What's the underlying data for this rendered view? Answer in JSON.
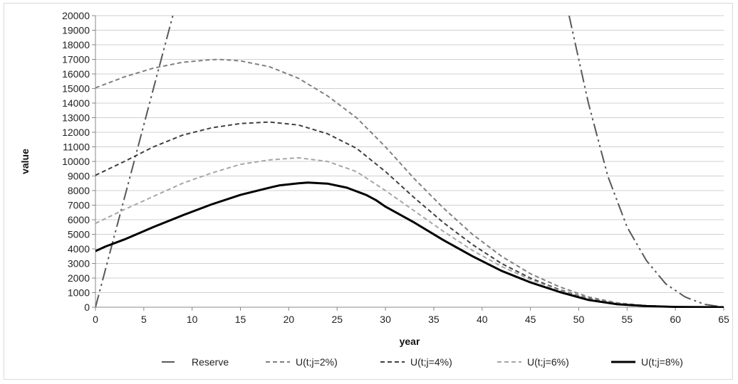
{
  "chart_data": {
    "type": "line",
    "title": "",
    "xlabel": "year",
    "ylabel": "value",
    "xlim": [
      0,
      65
    ],
    "ylim": [
      0,
      20000
    ],
    "x_ticks": [
      "0",
      "5",
      "10",
      "15",
      "20",
      "25",
      "30",
      "35",
      "40",
      "45",
      "50",
      "55",
      "60",
      "65"
    ],
    "y_ticks": [
      "0",
      "1000",
      "2000",
      "3000",
      "4000",
      "5000",
      "6000",
      "7000",
      "8000",
      "9000",
      "10000",
      "11000",
      "12000",
      "13000",
      "14000",
      "15000",
      "16000",
      "17000",
      "18000",
      "19000",
      "20000"
    ],
    "grid": "horizontal",
    "legend_position": "bottom",
    "series": [
      {
        "name": "Reserve",
        "color": "#595959",
        "dash": "long-dash-dot-dot",
        "x": [
          0,
          2,
          4,
          6,
          8,
          49,
          51,
          53,
          55,
          57,
          59,
          61,
          63,
          65
        ],
        "y": [
          0,
          5000,
          10000,
          15000,
          20000,
          20000,
          14000,
          9000,
          5500,
          3200,
          1600,
          700,
          200,
          0
        ]
      },
      {
        "name": "U(t;j=2%)",
        "color": "#808080",
        "dash": "dash",
        "x": [
          0,
          3,
          6,
          9,
          12,
          13,
          15,
          18,
          21,
          24,
          27,
          30,
          33,
          36,
          39,
          42,
          45,
          48,
          51,
          54,
          57,
          60,
          63,
          65
        ],
        "y": [
          15050,
          15800,
          16400,
          16800,
          16980,
          16990,
          16900,
          16500,
          15700,
          14500,
          13000,
          11000,
          8800,
          6800,
          5000,
          3500,
          2300,
          1400,
          700,
          300,
          100,
          30,
          10,
          0
        ]
      },
      {
        "name": "U(t;j=4%)",
        "color": "#404040",
        "dash": "dash",
        "x": [
          0,
          3,
          6,
          9,
          12,
          15,
          18,
          21,
          24,
          27,
          30,
          33,
          36,
          39,
          42,
          45,
          48,
          51,
          54,
          57,
          60,
          63,
          65
        ],
        "y": [
          9050,
          10000,
          11000,
          11800,
          12300,
          12600,
          12700,
          12500,
          11900,
          10900,
          9300,
          7500,
          5800,
          4300,
          3000,
          2000,
          1200,
          600,
          250,
          100,
          30,
          10,
          0
        ]
      },
      {
        "name": "U(t;j=6%)",
        "color": "#a6a6a6",
        "dash": "dash",
        "x": [
          0,
          3,
          6,
          9,
          12,
          15,
          18,
          21,
          24,
          27,
          30,
          33,
          36,
          39,
          42,
          45,
          48,
          51,
          54,
          57,
          60,
          63,
          65
        ],
        "y": [
          5750,
          6700,
          7600,
          8500,
          9200,
          9800,
          10100,
          10250,
          10000,
          9300,
          8000,
          6600,
          5200,
          3900,
          2800,
          1900,
          1150,
          550,
          250,
          100,
          30,
          10,
          0
        ]
      },
      {
        "name": "U(t;j=8%)",
        "color": "#000000",
        "dash": "solid",
        "x": [
          0,
          1,
          3,
          6,
          9,
          12,
          15,
          18,
          19,
          21,
          22,
          24,
          26,
          28,
          29,
          30,
          33,
          36,
          39,
          42,
          45,
          48,
          51,
          54,
          57,
          60,
          63,
          65
        ],
        "y": [
          3850,
          4150,
          4650,
          5500,
          6300,
          7050,
          7700,
          8200,
          8350,
          8500,
          8550,
          8480,
          8200,
          7700,
          7350,
          6900,
          5800,
          4600,
          3500,
          2500,
          1700,
          1050,
          500,
          200,
          80,
          20,
          5,
          0
        ]
      }
    ]
  }
}
